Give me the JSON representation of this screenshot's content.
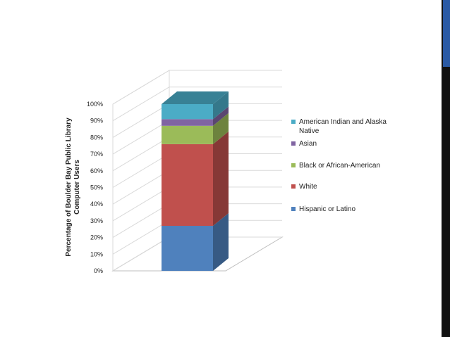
{
  "chart_data": {
    "type": "bar",
    "style": "3d-stacked",
    "categories": [
      ""
    ],
    "ylabel": "Percentage of Boulder Bay Public Library Computer Users",
    "ylim": [
      0,
      100
    ],
    "yticks": [
      "0%",
      "10%",
      "20%",
      "30%",
      "40%",
      "50%",
      "60%",
      "70%",
      "80%",
      "90%",
      "100%"
    ],
    "grid": true,
    "legend_position": "right",
    "series": [
      {
        "name": "Hispanic or Latino",
        "values": [
          27
        ],
        "color": "#4f81bd"
      },
      {
        "name": "White",
        "values": [
          49
        ],
        "color": "#c0504d"
      },
      {
        "name": "Black or African-American",
        "values": [
          11
        ],
        "color": "#9bbb59"
      },
      {
        "name": "Asian",
        "values": [
          4
        ],
        "color": "#8064a2"
      },
      {
        "name": "American Indian and Alaska Native",
        "values": [
          9
        ],
        "color": "#4bacc6"
      }
    ]
  },
  "legend_order": [
    [
      "American Indian and Alaska",
      "Native"
    ],
    [
      "Asian"
    ],
    [
      "Black or African-American"
    ],
    [
      "White"
    ],
    [
      "Hispanic or Latino"
    ]
  ],
  "legend_series_index": [
    4,
    3,
    2,
    1,
    0
  ]
}
